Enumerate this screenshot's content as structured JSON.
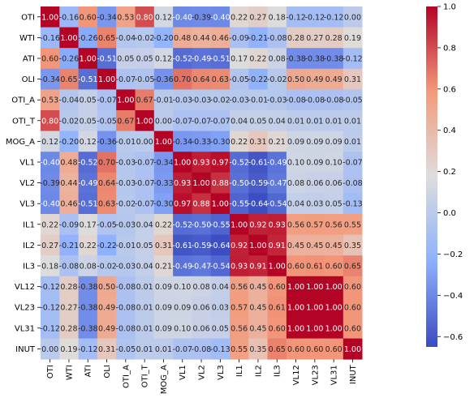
{
  "chart_data": {
    "type": "heatmap",
    "title": "",
    "xlabel": "",
    "ylabel": "",
    "colormap": "coolwarm",
    "colormap_stops": [
      "#3b4cc0",
      "#8db0fe",
      "#dddddd",
      "#f49a7b",
      "#b40426"
    ],
    "vmin": -0.65,
    "vmax": 1.0,
    "colorbar_ticks": [
      1.0,
      0.8,
      0.6,
      0.4,
      0.2,
      0.0,
      -0.2,
      -0.4,
      -0.6
    ],
    "colorbar_tick_labels": [
      "1.0",
      "0.8",
      "0.6",
      "0.4",
      "0.2",
      "0.0",
      "−0.2",
      "−0.4",
      "−0.6"
    ],
    "labels": [
      "OTI",
      "WTI",
      "ATI",
      "OLI",
      "OTI_A",
      "OTI_T",
      "MOG_A",
      "VL1",
      "VL2",
      "VL3",
      "IL1",
      "IL2",
      "IL3",
      "VL12",
      "VL23",
      "VL31",
      "INUT"
    ],
    "values": [
      [
        1.0,
        -0.16,
        0.6,
        -0.34,
        0.53,
        0.8,
        0.12,
        -0.4,
        -0.39,
        -0.4,
        0.22,
        0.27,
        0.18,
        -0.12,
        -0.12,
        -0.12,
        0.0
      ],
      [
        -0.16,
        1.0,
        -0.26,
        0.65,
        -0.04,
        -0.02,
        -0.2,
        0.48,
        0.44,
        0.46,
        -0.09,
        -0.21,
        -0.08,
        0.28,
        0.27,
        0.28,
        0.19
      ],
      [
        0.6,
        -0.26,
        1.0,
        -0.51,
        0.05,
        0.05,
        0.12,
        -0.52,
        -0.49,
        -0.51,
        0.17,
        0.22,
        0.08,
        -0.38,
        -0.38,
        -0.38,
        -0.12
      ],
      [
        -0.34,
        0.65,
        -0.51,
        1.0,
        -0.07,
        -0.05,
        -0.36,
        0.7,
        0.64,
        0.63,
        -0.05,
        -0.22,
        -0.02,
        0.5,
        0.49,
        0.49,
        0.31
      ],
      [
        0.53,
        -0.04,
        0.05,
        -0.07,
        1.0,
        0.67,
        -0.01,
        -0.03,
        -0.03,
        -0.02,
        -0.03,
        -0.01,
        -0.03,
        -0.08,
        -0.08,
        -0.08,
        -0.05
      ],
      [
        0.8,
        -0.02,
        0.05,
        -0.05,
        0.67,
        1.0,
        -0.0,
        -0.07,
        -0.07,
        -0.07,
        0.04,
        0.05,
        0.04,
        0.01,
        0.01,
        0.01,
        0.01
      ],
      [
        0.12,
        -0.2,
        0.12,
        -0.36,
        -0.01,
        -0.0,
        1.0,
        -0.34,
        -0.33,
        -0.3,
        0.22,
        0.31,
        0.21,
        0.09,
        0.09,
        0.09,
        0.01
      ],
      [
        -0.4,
        0.48,
        -0.52,
        0.7,
        -0.03,
        -0.07,
        -0.34,
        1.0,
        0.93,
        0.97,
        -0.52,
        -0.61,
        -0.49,
        0.1,
        0.09,
        0.1,
        -0.07
      ],
      [
        -0.39,
        0.44,
        -0.49,
        0.64,
        -0.03,
        -0.07,
        -0.33,
        0.93,
        1.0,
        0.88,
        -0.5,
        -0.59,
        -0.47,
        0.08,
        0.06,
        0.06,
        -0.08
      ],
      [
        -0.4,
        0.46,
        -0.51,
        0.63,
        -0.02,
        -0.07,
        -0.3,
        0.97,
        0.88,
        1.0,
        -0.55,
        -0.64,
        -0.54,
        0.04,
        0.03,
        0.05,
        -0.13
      ],
      [
        0.22,
        -0.09,
        0.17,
        -0.05,
        -0.03,
        0.04,
        0.22,
        -0.52,
        -0.5,
        -0.55,
        1.0,
        0.92,
        0.93,
        0.56,
        0.57,
        0.56,
        0.55
      ],
      [
        0.27,
        -0.21,
        0.22,
        -0.22,
        -0.01,
        0.05,
        0.31,
        -0.61,
        -0.59,
        -0.64,
        0.92,
        1.0,
        0.91,
        0.45,
        0.45,
        0.45,
        0.35
      ],
      [
        0.18,
        -0.08,
        0.08,
        -0.02,
        -0.03,
        0.04,
        0.21,
        -0.49,
        -0.47,
        -0.54,
        0.93,
        0.91,
        1.0,
        0.6,
        0.61,
        0.6,
        0.65
      ],
      [
        -0.12,
        0.28,
        -0.38,
        0.5,
        -0.08,
        0.01,
        0.09,
        0.1,
        0.08,
        0.04,
        0.56,
        0.45,
        0.6,
        1.0,
        1.0,
        1.0,
        0.6
      ],
      [
        -0.12,
        0.27,
        -0.38,
        0.49,
        -0.08,
        0.01,
        0.09,
        0.09,
        0.06,
        0.03,
        0.57,
        0.45,
        0.61,
        1.0,
        1.0,
        1.0,
        0.6
      ],
      [
        -0.12,
        0.28,
        -0.38,
        0.49,
        -0.08,
        0.01,
        0.09,
        0.1,
        0.06,
        0.05,
        0.56,
        0.45,
        0.6,
        1.0,
        1.0,
        1.0,
        0.6
      ],
      [
        0.0,
        0.19,
        -0.12,
        0.31,
        -0.05,
        0.01,
        0.01,
        -0.07,
        -0.08,
        -0.13,
        0.55,
        0.35,
        0.65,
        0.6,
        0.6,
        0.6,
        1.0
      ]
    ],
    "annotation_format": "0.00",
    "grid": false,
    "colorbar": "right"
  }
}
